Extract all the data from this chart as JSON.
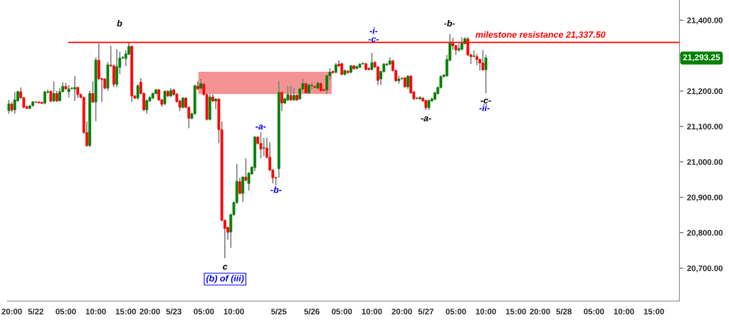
{
  "chart_data": {
    "type": "candlestick",
    "categories": [
      null,
      "20:00",
      null,
      null,
      null,
      null,
      null,
      null,
      null,
      "5/22",
      null,
      null,
      null,
      null,
      null,
      null,
      null,
      null,
      null,
      "05:00",
      null,
      null,
      null,
      null,
      null,
      null,
      null,
      null,
      null,
      "10:00",
      null,
      null,
      null,
      null,
      null,
      null,
      null,
      null,
      null,
      "15:00",
      null,
      null,
      null,
      null,
      null,
      null,
      null,
      "20:00",
      null,
      null,
      null,
      null,
      null,
      null,
      null,
      "5/23",
      null,
      null,
      null,
      null,
      null,
      null,
      null,
      null,
      null,
      "05:00",
      null,
      null,
      null,
      null,
      null,
      null,
      null,
      null,
      null,
      "10:00",
      null,
      null,
      null,
      null,
      null,
      null,
      null,
      null,
      null,
      null,
      null,
      null,
      null,
      null,
      "5/25",
      null,
      null,
      null,
      null,
      null,
      null,
      null,
      null,
      null,
      null,
      "5/26",
      null,
      null,
      null,
      null,
      null,
      null,
      null,
      null,
      null,
      "05:00",
      null,
      null,
      null,
      null,
      null,
      null,
      null,
      null,
      null,
      "10:00",
      null,
      null,
      null,
      null,
      null,
      null,
      null,
      null,
      null,
      "20:00",
      null,
      null,
      null,
      null,
      null,
      null,
      null,
      "5/27",
      null,
      null,
      null,
      null,
      null,
      null,
      null,
      null,
      null,
      "05:00",
      null,
      null,
      null,
      null,
      null,
      null,
      null,
      null,
      null,
      "10:00",
      null,
      null,
      null,
      null,
      null,
      null,
      null,
      null,
      null,
      "15:00",
      null,
      null,
      null,
      null,
      null,
      null,
      null,
      "20:00",
      null,
      null,
      null,
      null,
      null,
      null,
      null,
      "5/28",
      null,
      null,
      null,
      null,
      null,
      null,
      null,
      null,
      null,
      "05:00",
      null,
      null,
      null,
      null,
      null,
      null,
      null,
      null,
      null,
      "10:00",
      null,
      null,
      null,
      null,
      null,
      null,
      null,
      null,
      null,
      "15:00",
      null,
      null,
      null,
      null,
      null,
      null,
      null,
      null
    ],
    "ohlc": [
      [
        21145,
        21175,
        21136,
        21164
      ],
      [
        21163,
        21169,
        21141,
        21146
      ],
      [
        21147,
        21197,
        21136,
        21175
      ],
      [
        21173,
        21201,
        21169,
        21198
      ],
      [
        21198,
        21210,
        21178,
        21181
      ],
      [
        21181,
        21184,
        21151,
        21154
      ],
      [
        21156,
        21159,
        21149,
        21151
      ],
      [
        21151,
        21161,
        21149,
        21158
      ],
      [
        21159,
        21172,
        21156,
        21169
      ],
      [
        21169,
        21171,
        21166,
        21168
      ],
      [
        21169,
        21171,
        21165,
        21167
      ],
      [
        21168,
        21170,
        21163,
        21165
      ],
      [
        21166,
        21201,
        21162,
        21197
      ],
      [
        21196,
        21204,
        21194,
        21198
      ],
      [
        21199,
        21202,
        21169,
        21171
      ],
      [
        21172,
        21227,
        21169,
        21193
      ],
      [
        21193,
        21201,
        21169,
        21172
      ],
      [
        21173,
        21208,
        21170,
        21198
      ],
      [
        21198,
        21224,
        21196,
        21213
      ],
      [
        21213,
        21223,
        21204,
        21206
      ],
      [
        21198,
        21217,
        21182,
        21206
      ],
      [
        21207,
        21211,
        21204,
        21208
      ],
      [
        21206,
        21243,
        21172,
        21210
      ],
      [
        21210,
        21213,
        21180,
        21190
      ],
      [
        21190,
        21193,
        21179,
        21182
      ],
      [
        21182,
        21185,
        21078,
        21083
      ],
      [
        21083,
        21114,
        21042,
        21046
      ],
      [
        21046,
        21201,
        21042,
        21193
      ],
      [
        21193,
        21227,
        21166,
        21169
      ],
      [
        21169,
        21295,
        21115,
        21287
      ],
      [
        21287,
        21334,
        21230,
        21235
      ],
      [
        21235,
        21238,
        21169,
        21233
      ],
      [
        21234,
        21237,
        21205,
        21208
      ],
      [
        21208,
        21282,
        21201,
        21274
      ],
      [
        21273,
        21328,
        21268,
        21271
      ],
      [
        21271,
        21275,
        21211,
        21219
      ],
      [
        21219,
        21318,
        21211,
        21269
      ],
      [
        21267,
        21311,
        21248,
        21293
      ],
      [
        21294,
        21298,
        21290,
        21295
      ],
      [
        21292,
        21315,
        21271,
        21305
      ],
      [
        21304,
        21337,
        21302,
        21326
      ],
      [
        21326,
        21329,
        21169,
        21186
      ],
      [
        21186,
        21189,
        21177,
        21180
      ],
      [
        21180,
        21219,
        21175,
        21215
      ],
      [
        21225,
        21237,
        21190,
        21193
      ],
      [
        21193,
        21196,
        21143,
        21147
      ],
      [
        21147,
        21176,
        21136,
        21173
      ],
      [
        21172,
        21185,
        21169,
        21182
      ],
      [
        21180,
        21196,
        21177,
        21193
      ],
      [
        21193,
        21206,
        21190,
        21203
      ],
      [
        21203,
        21206,
        21172,
        21175
      ],
      [
        21175,
        21178,
        21156,
        21162
      ],
      [
        21164,
        21202,
        21160,
        21199
      ],
      [
        21199,
        21202,
        21183,
        21186
      ],
      [
        21186,
        21208,
        21183,
        21201
      ],
      [
        21203,
        21206,
        21187,
        21190
      ],
      [
        21191,
        21194,
        21167,
        21170
      ],
      [
        21172,
        21175,
        21143,
        21154
      ],
      [
        21154,
        21183,
        21151,
        21180
      ],
      [
        21180,
        21183,
        21151,
        21154
      ],
      [
        21154,
        21157,
        21095,
        21123
      ],
      [
        21123,
        21139,
        21120,
        21136
      ],
      [
        21136,
        21218,
        21133,
        21215
      ],
      [
        21214,
        21227,
        21203,
        21206
      ],
      [
        21208,
        21234,
        21205,
        21221
      ],
      [
        21219,
        21223,
        21187,
        21190
      ],
      [
        21190,
        21193,
        21117,
        21120
      ],
      [
        21120,
        21191,
        21117,
        21183
      ],
      [
        21183,
        21191,
        21169,
        21172
      ],
      [
        21172,
        21180,
        21149,
        21177
      ],
      [
        21177,
        21180,
        21052,
        21091
      ],
      [
        21091,
        21114,
        20832,
        20835
      ],
      [
        20835,
        20838,
        20728,
        20812
      ],
      [
        20815,
        20818,
        20780,
        20801
      ],
      [
        20802,
        20854,
        20757,
        20851
      ],
      [
        20851,
        20888,
        20848,
        20885
      ],
      [
        20885,
        20994,
        20882,
        20945
      ],
      [
        20944,
        20955,
        20908,
        20911
      ],
      [
        20911,
        20960,
        20887,
        20957
      ],
      [
        20957,
        21010,
        20945,
        20948
      ],
      [
        20939,
        20971,
        20919,
        20968
      ],
      [
        20966,
        20988,
        20963,
        20985
      ],
      [
        20984,
        21073,
        20974,
        21070
      ],
      [
        21070,
        21073,
        21049,
        21052
      ],
      [
        21052,
        21084,
        21010,
        21036
      ],
      [
        21039,
        21068,
        21016,
        21040
      ],
      [
        21039,
        21068,
        21010,
        21013
      ],
      [
        21013,
        21055,
        20974,
        20977
      ],
      [
        20977,
        20980,
        20939,
        20955
      ],
      [
        20956,
        20958,
        20933,
        20955
      ],
      [
        20981,
        21229,
        20955,
        21196
      ],
      [
        21196,
        21199,
        21143,
        21166
      ],
      [
        21166,
        21181,
        21163,
        21178
      ],
      [
        21175,
        21214,
        21172,
        21190
      ],
      [
        21188,
        21214,
        21172,
        21175
      ],
      [
        21175,
        21208,
        21172,
        21188
      ],
      [
        21188,
        21191,
        21172,
        21175
      ],
      [
        21178,
        21209,
        21175,
        21206
      ],
      [
        21206,
        21234,
        21203,
        21221
      ],
      [
        21221,
        21225,
        21192,
        21195
      ],
      [
        21195,
        21220,
        21192,
        21217
      ],
      [
        21215,
        21224,
        21204,
        21216
      ],
      [
        21213,
        21216,
        21207,
        21210
      ],
      [
        21208,
        21227,
        21205,
        21222
      ],
      [
        21221,
        21224,
        21198,
        21201
      ],
      [
        21204,
        21207,
        21199,
        21202
      ],
      [
        21203,
        21246,
        21191,
        21243
      ],
      [
        21243,
        21264,
        21232,
        21253
      ],
      [
        21255,
        21258,
        21249,
        21252
      ],
      [
        21253,
        21279,
        21250,
        21274
      ],
      [
        21276,
        21287,
        21268,
        21271
      ],
      [
        21277,
        21280,
        21244,
        21247
      ],
      [
        21247,
        21261,
        21244,
        21258
      ],
      [
        21256,
        21259,
        21249,
        21252
      ],
      [
        21253,
        21274,
        21250,
        21271
      ],
      [
        21271,
        21274,
        21260,
        21263
      ],
      [
        21264,
        21272,
        21261,
        21269
      ],
      [
        21267,
        21279,
        21264,
        21276
      ],
      [
        21277,
        21281,
        21274,
        21278
      ],
      [
        21277,
        21280,
        21258,
        21261
      ],
      [
        21264,
        21267,
        21258,
        21261
      ],
      [
        21261,
        21308,
        21258,
        21280
      ],
      [
        21281,
        21284,
        21265,
        21268
      ],
      [
        21268,
        21271,
        21217,
        21230
      ],
      [
        21234,
        21258,
        21217,
        21255
      ],
      [
        21255,
        21279,
        21252,
        21276
      ],
      [
        21274,
        21279,
        21271,
        21276
      ],
      [
        21276,
        21295,
        21273,
        21285
      ],
      [
        21285,
        21288,
        21255,
        21258
      ],
      [
        21258,
        21261,
        21226,
        21229
      ],
      [
        21229,
        21243,
        21221,
        21234
      ],
      [
        21235,
        21239,
        21231,
        21236
      ],
      [
        21237,
        21240,
        21209,
        21212
      ],
      [
        21212,
        21245,
        21206,
        21242
      ],
      [
        21242,
        21245,
        21192,
        21195
      ],
      [
        21197,
        21200,
        21175,
        21178
      ],
      [
        21180,
        21183,
        21176,
        21179
      ],
      [
        21178,
        21185,
        21175,
        21182
      ],
      [
        21180,
        21183,
        21169,
        21172
      ],
      [
        21173,
        21176,
        21146,
        21153
      ],
      [
        21153,
        21176,
        21146,
        21173
      ],
      [
        21172,
        21181,
        21169,
        21178
      ],
      [
        21177,
        21198,
        21174,
        21195
      ],
      [
        21193,
        21213,
        21190,
        21210
      ],
      [
        21210,
        21244,
        21207,
        21241
      ],
      [
        21241,
        21248,
        21238,
        21245
      ],
      [
        21243,
        21302,
        21240,
        21289
      ],
      [
        21287,
        21361,
        21284,
        21335
      ],
      [
        21335,
        21350,
        21316,
        21328
      ],
      [
        21328,
        21331,
        21302,
        21316
      ],
      [
        21316,
        21334,
        21311,
        21320
      ],
      [
        21318,
        21352,
        21315,
        21335
      ],
      [
        21334,
        21352,
        21331,
        21347
      ],
      [
        21347,
        21352,
        21299,
        21302
      ],
      [
        21302,
        21305,
        21276,
        21297
      ],
      [
        21298,
        21315,
        21295,
        21299
      ],
      [
        21297,
        21305,
        21273,
        21289
      ],
      [
        21289,
        21292,
        21258,
        21279
      ],
      [
        21279,
        21316,
        21257,
        21260
      ],
      [
        21260,
        21302,
        21193,
        21293.25
      ],
      null,
      null,
      null,
      null,
      null,
      null,
      null,
      null,
      null,
      null,
      null,
      null,
      null,
      null,
      null,
      null,
      null,
      null,
      null,
      null,
      null,
      null,
      null,
      null,
      null,
      null,
      null,
      null,
      null,
      null,
      null,
      null,
      null,
      null,
      null,
      null,
      null,
      null,
      null,
      null,
      null,
      null,
      null,
      null,
      null,
      null,
      null,
      null,
      null,
      null,
      null,
      null,
      null,
      null,
      null,
      null,
      null,
      null,
      null,
      null,
      null,
      null,
      null,
      null
    ],
    "colors": [
      "#008000",
      "#ff0000",
      "#008000",
      "#008000",
      "#ff0000",
      "#ff0000",
      "#ff0000",
      "#008000",
      "#008000",
      "#ff0000",
      "#ff0000",
      "#ff0000",
      "#008000",
      "#008000",
      "#ff0000",
      "#008000",
      "#ff0000",
      "#008000",
      "#008000",
      "#ff0000",
      "#008000",
      "#008000",
      "#008000",
      "#ff0000",
      "#ff0000",
      "#ff0000",
      "#ff0000",
      "#008000",
      "#ff0000",
      "#008000",
      "#ff0000",
      "#ff0000",
      "#ff0000",
      "#008000",
      "#ff0000",
      "#ff0000",
      "#008000",
      "#008000",
      "#008000",
      "#008000",
      "#008000",
      "#ff0000",
      "#ff0000",
      "#008000",
      "#ff0000",
      "#ff0000",
      "#008000",
      "#008000",
      "#008000",
      "#008000",
      "#ff0000",
      "#ff0000",
      "#008000",
      "#ff0000",
      "#008000",
      "#ff0000",
      "#ff0000",
      "#ff0000",
      "#008000",
      "#ff0000",
      "#ff0000",
      "#008000",
      "#008000",
      "#ff0000",
      "#008000",
      "#ff0000",
      "#ff0000",
      "#008000",
      "#ff0000",
      "#008000",
      "#ff0000",
      "#ff0000",
      "#ff0000",
      "#ff0000",
      "#008000",
      "#008000",
      "#008000",
      "#ff0000",
      "#008000",
      "#ff0000",
      "#008000",
      "#008000",
      "#008000",
      "#ff0000",
      "#ff0000",
      "#008000",
      "#ff0000",
      "#ff0000",
      "#ff0000",
      "#ff0000",
      "#008000",
      "#ff0000",
      "#008000",
      "#008000",
      "#ff0000",
      "#008000",
      "#ff0000",
      "#008000",
      "#008000",
      "#ff0000",
      "#008000",
      "#008000",
      "#ff0000",
      "#008000",
      "#ff0000",
      "#ff0000",
      "#008000",
      "#008000",
      "#ff0000",
      "#008000",
      "#ff0000",
      "#ff0000",
      "#008000",
      "#ff0000",
      "#008000",
      "#ff0000",
      "#008000",
      "#008000",
      "#008000",
      "#ff0000",
      "#ff0000",
      "#008000",
      "#ff0000",
      "#ff0000",
      "#008000",
      "#008000",
      "#008000",
      "#008000",
      "#ff0000",
      "#ff0000",
      "#008000",
      "#008000",
      "#ff0000",
      "#008000",
      "#ff0000",
      "#ff0000",
      "#ff0000",
      "#008000",
      "#ff0000",
      "#ff0000",
      "#008000",
      "#008000",
      "#008000",
      "#008000",
      "#008000",
      "#008000",
      "#008000",
      "#008000",
      "#ff0000",
      "#ff0000",
      "#008000",
      "#008000",
      "#008000",
      "#ff0000",
      "#ff0000",
      "#008000",
      "#ff0000",
      "#ff0000",
      "#ff0000",
      "#008000",
      null,
      null,
      null,
      null,
      null,
      null,
      null,
      null,
      null,
      null,
      null,
      null,
      null,
      null,
      null,
      null,
      null,
      null,
      null,
      null,
      null,
      null,
      null,
      null,
      null,
      null,
      null,
      null,
      null,
      null,
      null,
      null,
      null,
      null,
      null,
      null,
      null,
      null,
      null,
      null,
      null,
      null,
      null,
      null,
      null,
      null,
      null,
      null,
      null,
      null,
      null,
      null,
      null,
      null,
      null,
      null,
      null,
      null,
      null,
      null,
      null,
      null,
      null,
      null
    ],
    "ylim": [
      20607,
      21457
    ],
    "yticks": [
      {
        "value": 20700,
        "label": "20,700.00"
      },
      {
        "value": 20800,
        "label": "20,800.00"
      },
      {
        "value": 20900,
        "label": "20,900.00"
      },
      {
        "value": 21000,
        "label": "21,000.00"
      },
      {
        "value": 21100,
        "label": "21,100.00"
      },
      {
        "value": 21200,
        "label": "21,200.00"
      },
      {
        "value": 21300,
        "label": null
      },
      {
        "value": 21400,
        "label": "21,400.00"
      }
    ],
    "ref_lines": [
      {
        "axis": "y",
        "value": 21337.5,
        "label": "milestone resistance 21,337.50",
        "color": "#ff0000"
      }
    ],
    "bands": [
      {
        "axis": "y",
        "from": 21193,
        "to": 21253,
        "color": "#f07070"
      }
    ],
    "annotations": [
      "b",
      "c",
      "(b) of (iii)",
      "-a-",
      "-b-",
      "-i-",
      "-c-",
      "-a-",
      "-b-",
      "-c-",
      "-ii-",
      "21,293.25"
    ],
    "grid": false,
    "legend": false
  }
}
